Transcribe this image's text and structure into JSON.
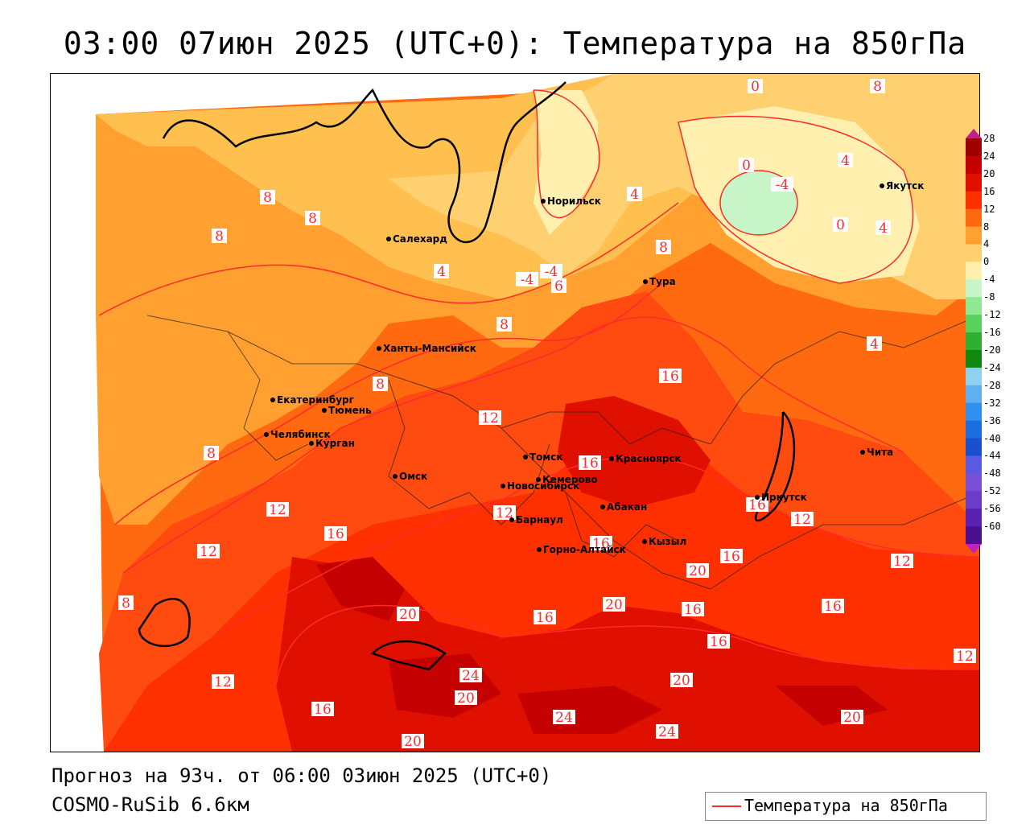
{
  "title": "03:00 07июн 2025 (UTC+0): Температура на 850гПа",
  "footer": {
    "forecast": "Прогноз на 93ч. от 06:00 03июн 2025 (UTC+0)",
    "model": "COSMO-RuSib 6.6км"
  },
  "legend": {
    "label": "Температура на 850гПа",
    "color": "#ff2a2a"
  },
  "colorbar": {
    "levels": [
      "28",
      "24",
      "20",
      "16",
      "12",
      "8",
      "4",
      "0",
      "-4",
      "-8",
      "-12",
      "-16",
      "-20",
      "-24",
      "-28",
      "-32",
      "-36",
      "-40",
      "-44",
      "-48",
      "-52",
      "-56",
      "-60"
    ],
    "colors": [
      "#a00000",
      "#c40000",
      "#e01000",
      "#ff3000",
      "#ff6a10",
      "#ffa030",
      "#ffd070",
      "#fff0b0",
      "#c8f5c8",
      "#90e890",
      "#5cd05c",
      "#30b030",
      "#108810",
      "#90d0f0",
      "#60b0f0",
      "#3090f0",
      "#1c6ee0",
      "#1a4fd0",
      "#5a5ae0",
      "#7a50d8",
      "#6a3cc8",
      "#5a20b0",
      "#4a1090"
    ]
  },
  "cities": [
    {
      "name": "Норильск"
    },
    {
      "name": "Якутск"
    },
    {
      "name": "Салехард"
    },
    {
      "name": "Тура"
    },
    {
      "name": "Ханты-Мансийск"
    },
    {
      "name": "Екатеринбург"
    },
    {
      "name": "Тюмень"
    },
    {
      "name": "Челябинск"
    },
    {
      "name": "Курган"
    },
    {
      "name": "Омск"
    },
    {
      "name": "Томск"
    },
    {
      "name": "Красноярск"
    },
    {
      "name": "Новосибирск"
    },
    {
      "name": "Кемерово"
    },
    {
      "name": "Барнаул"
    },
    {
      "name": "Абакан"
    },
    {
      "name": "Иркутск"
    },
    {
      "name": "Чита"
    },
    {
      "name": "Горно-Алтайск"
    },
    {
      "name": "Кызыл"
    }
  ],
  "isolines": [
    "0",
    "8",
    "4",
    "-4",
    "0",
    "4",
    "0",
    "8",
    "4",
    "8",
    "8",
    "-4",
    "4",
    "-4",
    "6",
    "8",
    "4",
    "8",
    "12",
    "16",
    "8",
    "8",
    "12",
    "16",
    "12",
    "12",
    "16",
    "12",
    "16",
    "12",
    "16",
    "20",
    "20",
    "16",
    "20",
    "16",
    "16",
    "16",
    "8",
    "12",
    "20",
    "24",
    "20",
    "24",
    "24",
    "20",
    "20",
    "16",
    "12",
    "16"
  ]
}
